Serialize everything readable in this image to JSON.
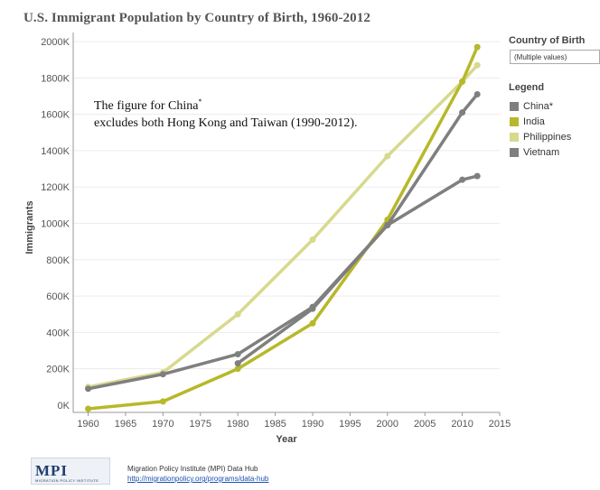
{
  "title": "U.S. Immigrant Population by Country of Birth, 1960-2012",
  "filter": {
    "label": "Country of Birth",
    "value": "(Multiple values)"
  },
  "legend": {
    "title": "Legend",
    "items": [
      {
        "label": "China*",
        "color": "#7f7f7f"
      },
      {
        "label": "India",
        "color": "#b7b82a"
      },
      {
        "label": "Philippines",
        "color": "#d7d98d"
      },
      {
        "label": "Vietnam",
        "color": "#7f7f7f"
      }
    ]
  },
  "note": {
    "line1": "The figure for China",
    "mark": "*",
    "line2": "excludes both Hong Kong and Taiwan (1990-2012)."
  },
  "logo": {
    "text": "MPI",
    "subtext": "MIGRATION POLICY INSTITUTE"
  },
  "source": {
    "line1": "Migration Policy Institute (MPI) Data Hub",
    "link": "http://migrationpolicy.org/programs/data-hub"
  },
  "chart_data": {
    "type": "line",
    "title": "U.S. Immigrant Population by Country of Birth, 1960-2012",
    "xlabel": "Year",
    "ylabel": "Immigrants",
    "xlim": [
      1958,
      2015
    ],
    "ylim": [
      -40000,
      2050000
    ],
    "xticks": [
      1960,
      1965,
      1970,
      1975,
      1980,
      1985,
      1990,
      1995,
      2000,
      2005,
      2010,
      2015
    ],
    "yticks": [
      0,
      200000,
      400000,
      600000,
      800000,
      1000000,
      1200000,
      1400000,
      1600000,
      1800000,
      2000000
    ],
    "ytick_labels": [
      "0K",
      "200K",
      "400K",
      "600K",
      "800K",
      "1000K",
      "1200K",
      "1400K",
      "1600K",
      "1800K",
      "2000K"
    ],
    "grid": true,
    "legend_position": "right",
    "series": [
      {
        "name": "China*",
        "color": "#7f7f7f",
        "x": [
          1980,
          1990,
          2000,
          2010,
          2012
        ],
        "y": [
          230000,
          530000,
          990000,
          1610000,
          1710000
        ]
      },
      {
        "name": "India",
        "color": "#b7b82a",
        "x": [
          1960,
          1970,
          1980,
          1990,
          2000,
          2010,
          2012
        ],
        "y": [
          -20000,
          20000,
          200000,
          450000,
          1020000,
          1780000,
          1970000
        ]
      },
      {
        "name": "Philippines",
        "color": "#d7d98d",
        "x": [
          1960,
          1970,
          1980,
          1990,
          2000,
          2010,
          2012
        ],
        "y": [
          100000,
          180000,
          500000,
          910000,
          1370000,
          1780000,
          1870000
        ]
      },
      {
        "name": "Vietnam",
        "color": "#7f7f7f",
        "x": [
          1960,
          1970,
          1980,
          1990,
          2000,
          2010,
          2012
        ],
        "y": [
          90000,
          170000,
          280000,
          540000,
          990000,
          1240000,
          1260000
        ]
      }
    ]
  }
}
